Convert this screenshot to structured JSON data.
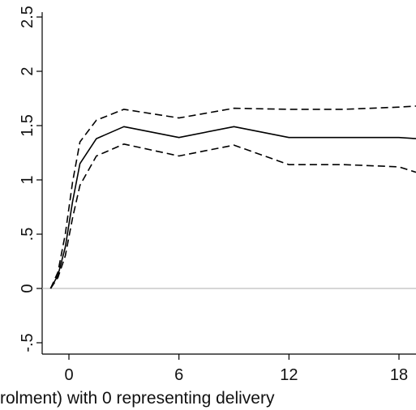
{
  "chart_data": {
    "type": "line",
    "title": "",
    "xlabel": "rolment) with 0 representing delivery",
    "ylabel": "",
    "xlim": [
      -2.4,
      19
    ],
    "ylim": [
      -0.55,
      2.55
    ],
    "x_ticks": [
      0,
      6,
      12,
      18
    ],
    "y_ticks": [
      -0.5,
      0,
      0.5,
      1,
      1.5,
      2,
      2.5
    ],
    "y_tick_labels": [
      "-.5",
      "0",
      ".5",
      "1",
      "1.5",
      "2",
      "2.5"
    ],
    "x_tick_labels": [
      "0",
      "6",
      "12",
      "18"
    ],
    "reference_line": {
      "y": 0,
      "color": "#bdbdbd"
    },
    "grid": false,
    "legend": "none",
    "series": [
      {
        "style": "dashed",
        "x": [
          -1,
          -0.6,
          -0.2,
          0.2,
          0.6,
          1.5,
          3,
          6,
          9,
          12,
          15,
          18,
          19
        ],
        "y": [
          0,
          0.1,
          0.3,
          0.65,
          0.95,
          1.22,
          1.33,
          1.22,
          1.32,
          1.14,
          1.14,
          1.12,
          1.07
        ]
      },
      {
        "style": "solid",
        "x": [
          -1,
          -0.6,
          -0.2,
          0.2,
          0.6,
          1.5,
          3,
          6,
          9,
          12,
          15,
          18,
          19
        ],
        "y": [
          0,
          0.12,
          0.38,
          0.8,
          1.15,
          1.38,
          1.49,
          1.39,
          1.49,
          1.39,
          1.39,
          1.39,
          1.38
        ]
      },
      {
        "style": "dashed",
        "x": [
          -1,
          -0.6,
          -0.2,
          0.2,
          0.6,
          1.5,
          3,
          6,
          9,
          12,
          15,
          18,
          19
        ],
        "y": [
          0,
          0.15,
          0.5,
          0.98,
          1.35,
          1.55,
          1.65,
          1.57,
          1.66,
          1.65,
          1.65,
          1.67,
          1.68
        ]
      }
    ]
  }
}
